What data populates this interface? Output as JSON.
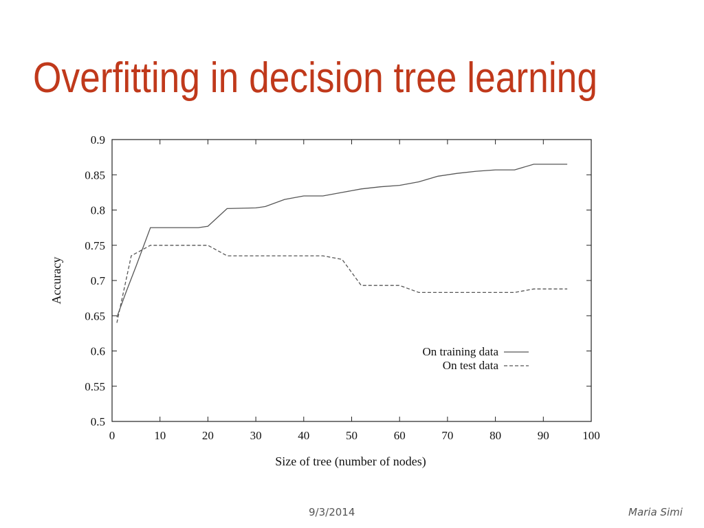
{
  "slide": {
    "title": "Overfitting in decision tree learning",
    "title_color": "#c0391b",
    "footer_date": "9/3/2014",
    "footer_author": "Maria Simi"
  },
  "chart_data": {
    "type": "line",
    "title": "",
    "xlabel": "Size of tree (number of nodes)",
    "ylabel": "Accuracy",
    "xlim": [
      0,
      100
    ],
    "ylim": [
      0.5,
      0.9
    ],
    "xticks": [
      "0",
      "10",
      "20",
      "30",
      "40",
      "50",
      "60",
      "70",
      "80",
      "90",
      "100"
    ],
    "yticks": [
      "0.5",
      "0.55",
      "0.6",
      "0.65",
      "0.7",
      "0.75",
      "0.8",
      "0.85",
      "0.9"
    ],
    "grid": false,
    "legend_position": "bottom-right",
    "series": [
      {
        "name": "On training data",
        "style": "solid",
        "color": "#555555",
        "x": [
          1,
          3,
          5,
          8,
          10,
          18,
          20,
          24,
          30,
          32,
          36,
          40,
          44,
          48,
          52,
          56,
          60,
          64,
          68,
          72,
          76,
          80,
          84,
          88,
          92,
          95
        ],
        "y": [
          0.648,
          0.685,
          0.72,
          0.775,
          0.775,
          0.775,
          0.777,
          0.802,
          0.803,
          0.805,
          0.815,
          0.82,
          0.82,
          0.825,
          0.83,
          0.833,
          0.835,
          0.84,
          0.848,
          0.852,
          0.855,
          0.857,
          0.857,
          0.865,
          0.865,
          0.865
        ]
      },
      {
        "name": "On test data",
        "style": "dashed",
        "color": "#555555",
        "x": [
          1,
          4,
          8,
          20,
          24,
          30,
          40,
          44,
          48,
          52,
          60,
          64,
          68,
          80,
          84,
          88,
          95
        ],
        "y": [
          0.64,
          0.735,
          0.75,
          0.75,
          0.735,
          0.735,
          0.735,
          0.735,
          0.73,
          0.693,
          0.693,
          0.683,
          0.683,
          0.683,
          0.683,
          0.688,
          0.688
        ]
      }
    ]
  }
}
